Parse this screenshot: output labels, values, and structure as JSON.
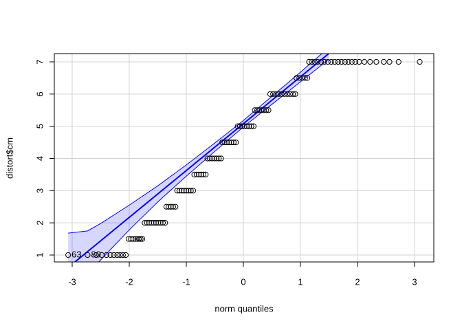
{
  "chart_data": {
    "type": "qq",
    "x_label": "norm quantiles",
    "y_label": "distort$cm",
    "xlim": [
      -3.313,
      3.337
    ],
    "ylim": [
      0.786,
      7.256
    ],
    "xticks": [
      -3,
      -2,
      -1,
      0,
      1,
      2,
      3
    ],
    "yticks": [
      1,
      2,
      3,
      4,
      5,
      6,
      7
    ],
    "grid": true,
    "color": "#0000ff",
    "x": [
      -3.07,
      -2.73,
      -2.58,
      -2.48,
      -2.4,
      -2.33,
      -2.27,
      -2.21,
      -2.16,
      -2.11,
      -2.06,
      -2.01,
      -1.97,
      -1.93,
      -1.89,
      -1.86,
      -1.83,
      -1.8,
      -1.77,
      -1.73,
      -1.69,
      -1.65,
      -1.61,
      -1.57,
      -1.53,
      -1.49,
      -1.45,
      -1.41,
      -1.37,
      -1.35,
      -1.31,
      -1.27,
      -1.23,
      -1.19,
      -1.16,
      -1.12,
      -1.08,
      -1.04,
      -1.0,
      -0.96,
      -0.92,
      -0.88,
      -0.86,
      -0.82,
      -0.78,
      -0.74,
      -0.7,
      -0.66,
      -0.63,
      -0.59,
      -0.55,
      -0.51,
      -0.47,
      -0.43,
      -0.39,
      -0.37,
      -0.33,
      -0.29,
      -0.25,
      -0.21,
      -0.17,
      -0.13,
      -0.1,
      -0.06,
      -0.02,
      0.02,
      0.06,
      0.1,
      0.14,
      0.18,
      0.2,
      0.24,
      0.28,
      0.32,
      0.36,
      0.4,
      0.44,
      0.47,
      0.52,
      0.57,
      0.62,
      0.67,
      0.72,
      0.77,
      0.82,
      0.87,
      0.91,
      0.93,
      0.98,
      1.03,
      1.08,
      1.12,
      1.15,
      1.2,
      1.25,
      1.3,
      1.36,
      1.42,
      1.48,
      1.54,
      1.6,
      1.66,
      1.72,
      1.78,
      1.84,
      1.9,
      1.96,
      2.03,
      2.12,
      2.22,
      2.33,
      2.46,
      2.56,
      2.72,
      3.09
    ],
    "values": [
      1,
      1,
      1,
      1,
      1,
      1,
      1,
      1,
      1,
      1,
      1,
      1.5,
      1.5,
      1.5,
      1.5,
      1.5,
      1.5,
      1.5,
      1.5,
      2,
      2,
      2,
      2,
      2,
      2,
      2,
      2,
      2,
      2,
      2.5,
      2.5,
      2.5,
      2.5,
      2.5,
      3,
      3,
      3,
      3,
      3,
      3,
      3,
      3,
      3.5,
      3.5,
      3.5,
      3.5,
      3.5,
      3.5,
      4,
      4,
      4,
      4,
      4,
      4,
      4,
      4.5,
      4.5,
      4.5,
      4.5,
      4.5,
      4.5,
      4.5,
      5,
      5,
      5,
      5,
      5,
      5,
      5,
      5,
      5.5,
      5.5,
      5.5,
      5.5,
      5.5,
      5.5,
      5.5,
      6,
      6,
      6,
      6,
      6,
      6,
      6,
      6,
      6,
      6,
      6.5,
      6.5,
      6.5,
      6.5,
      6.5,
      7,
      7,
      7,
      7,
      7,
      7,
      7,
      7,
      7,
      7,
      7,
      7,
      7,
      7,
      7,
      7,
      7,
      7,
      7,
      7,
      7,
      7,
      7
    ],
    "line": {
      "intercept": 5.08,
      "slope": 1.455
    },
    "band": {
      "x": [
        -3.07,
        -2.73,
        -2.5,
        -2,
        -1.5,
        -1,
        -0.5,
        0,
        0.5,
        1,
        1.5
      ],
      "upper": [
        1.68,
        1.75,
        1.98,
        2.55,
        3.15,
        3.8,
        4.48,
        5.18,
        5.93,
        6.68,
        7.45
      ],
      "lower": [
        -0.5,
        0.4,
        0.85,
        1.78,
        2.65,
        3.45,
        4.22,
        4.98,
        5.68,
        6.38,
        7.08
      ]
    },
    "annotations": [
      {
        "text": "63",
        "x": -3.07,
        "y": 1
      },
      {
        "text": "80",
        "x": -2.73,
        "y": 1
      }
    ]
  }
}
